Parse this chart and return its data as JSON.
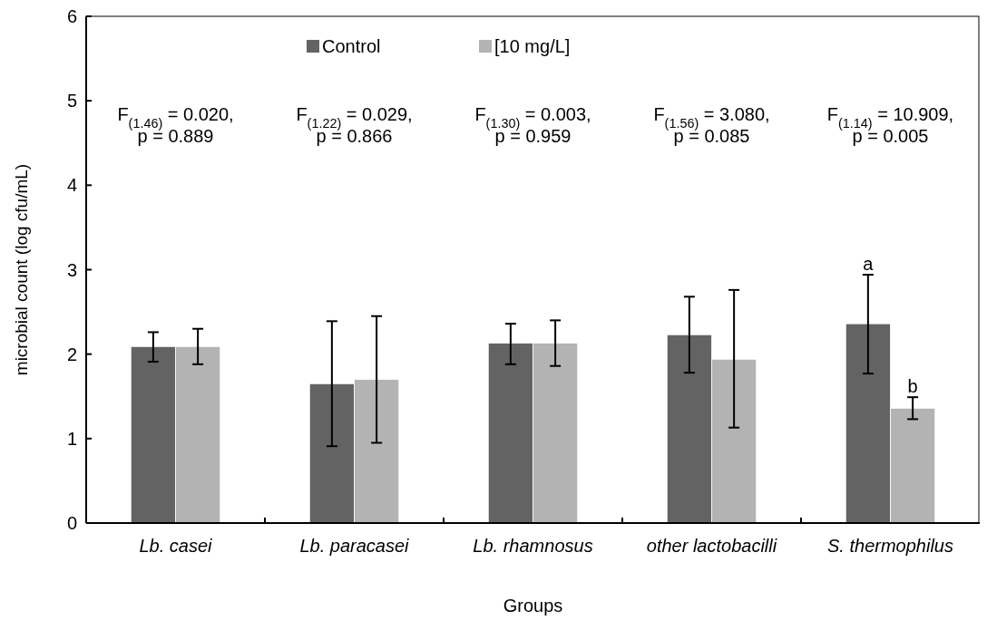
{
  "chart_data": {
    "type": "bar",
    "xlabel": "Groups",
    "ylabel": "microbial count (log cfu/mL)",
    "categories": [
      "Lb. casei",
      "Lb. paracasei",
      "Lb. rhamnosus",
      "other lactobacilli",
      "S. thermophilus"
    ],
    "series": [
      {
        "name": "Control",
        "color": "#636363",
        "values": [
          2.09,
          1.65,
          2.13,
          2.23,
          2.36
        ],
        "errors": [
          [
            1.91,
            2.26
          ],
          [
            0.91,
            2.39
          ],
          [
            1.88,
            2.36
          ],
          [
            1.78,
            2.68
          ],
          [
            1.77,
            2.94
          ]
        ]
      },
      {
        "name": "[10 mg/L]",
        "color": "#b3b3b3",
        "values": [
          2.09,
          1.7,
          2.13,
          1.94,
          1.36
        ],
        "errors": [
          [
            1.88,
            2.3
          ],
          [
            0.95,
            2.45
          ],
          [
            1.86,
            2.4
          ],
          [
            1.13,
            2.76
          ],
          [
            1.23,
            1.49
          ]
        ]
      }
    ],
    "ylim": [
      0,
      6
    ],
    "yticks": [
      0,
      1,
      2,
      3,
      4,
      5,
      6
    ],
    "grid": false,
    "legend": "top",
    "annotations": [
      "F$_{(1.46)}$ = 0.020,\np = 0.889",
      "F$_{(1.22)}$ = 0.029,\np = 0.866",
      "F$_{(1.30)}$ = 0.003,\np = 0.959",
      "F$_{(1.56)}$ = 3.080,\np = 0.085",
      "F$_{(1.14)}$ = 10.909,\np = 0.005",
      {
        "text": "a",
        "x": "S. thermophilus",
        "y": 2.36
      },
      {
        "text": "b",
        "x": "S. thermophilus",
        "y": 1.36
      }
    ]
  }
}
